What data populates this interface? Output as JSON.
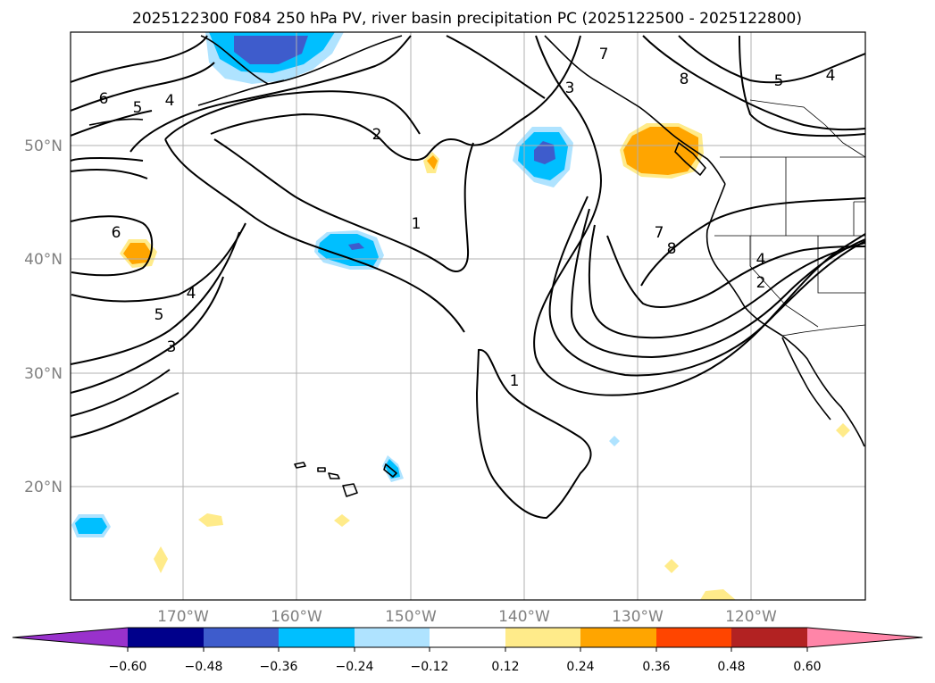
{
  "title": "2025122300 F084 250 hPa PV, river basin precipitation PC (2025122500 - 2025122800)",
  "map": {
    "lat_labels": [
      "50°N",
      "40°N",
      "30°N",
      "20°N"
    ],
    "lon_labels": [
      "170°W",
      "160°W",
      "150°W",
      "140°W",
      "130°W",
      "120°W"
    ],
    "contour_labels": [
      "6",
      "5",
      "4",
      "2",
      "1",
      "3",
      "7",
      "8",
      "6",
      "5",
      "4",
      "3",
      "1",
      "7",
      "8",
      "5",
      "4",
      "4",
      "2"
    ]
  },
  "colorbar": {
    "ticks": [
      "−0.60",
      "−0.48",
      "−0.36",
      "−0.24",
      "−0.12",
      "0.12",
      "0.24",
      "0.36",
      "0.48",
      "0.60"
    ],
    "colors": {
      "under": "#9932cc",
      "neg060": "#00008b",
      "neg048": "#3e5ccc",
      "neg036": "#00bfff",
      "neg024": "#afe3ff",
      "neutral": "#ffffff",
      "pos012": "#ffeb8a",
      "pos024": "#ffa500",
      "pos036": "#ff4500",
      "pos048": "#b22222",
      "over": "#ff85a8"
    }
  }
}
